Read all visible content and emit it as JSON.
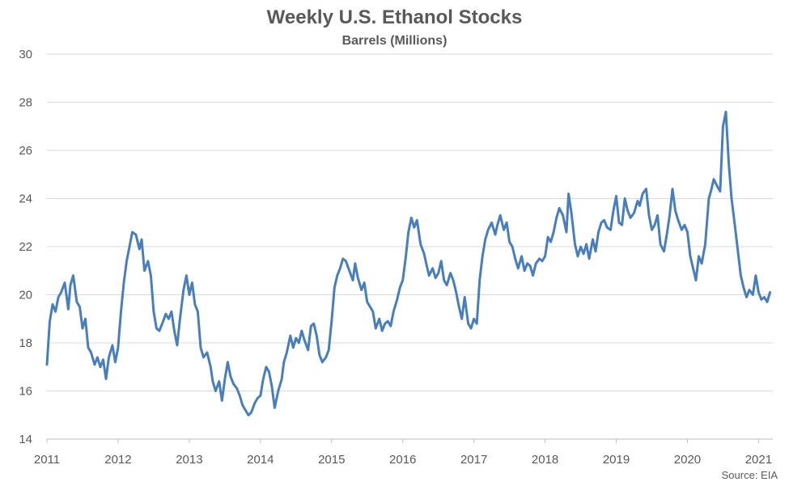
{
  "chart_data": {
    "type": "line",
    "title": "Weekly U.S. Ethanol Stocks",
    "subtitle": "Barrels (Millions)",
    "source": "Source: EIA",
    "xlabel": "",
    "ylabel": "",
    "xlim": [
      2011,
      2021.2
    ],
    "ylim": [
      14,
      30
    ],
    "x_ticks": [
      "2011",
      "2012",
      "2013",
      "2014",
      "2015",
      "2016",
      "2017",
      "2018",
      "2019",
      "2020",
      "2021"
    ],
    "y_ticks": [
      "14",
      "16",
      "18",
      "20",
      "22",
      "24",
      "26",
      "28",
      "30"
    ],
    "grid": true,
    "legend": "none",
    "series": [
      {
        "color": "#4a7ebb",
        "x": [
          2011.0,
          2011.04,
          2011.08,
          2011.12,
          2011.16,
          2011.2,
          2011.25,
          2011.3,
          2011.33,
          2011.37,
          2011.42,
          2011.46,
          2011.5,
          2011.54,
          2011.58,
          2011.62,
          2011.67,
          2011.71,
          2011.75,
          2011.79,
          2011.83,
          2011.87,
          2011.92,
          2011.96,
          2012.0,
          2012.04,
          2012.08,
          2012.12,
          2012.16,
          2012.2,
          2012.25,
          2012.3,
          2012.33,
          2012.37,
          2012.42,
          2012.46,
          2012.5,
          2012.54,
          2012.58,
          2012.62,
          2012.67,
          2012.71,
          2012.75,
          2012.79,
          2012.83,
          2012.87,
          2012.92,
          2012.96,
          2013.0,
          2013.04,
          2013.08,
          2013.12,
          2013.16,
          2013.2,
          2013.25,
          2013.3,
          2013.33,
          2013.37,
          2013.42,
          2013.46,
          2013.5,
          2013.54,
          2013.58,
          2013.62,
          2013.67,
          2013.71,
          2013.75,
          2013.79,
          2013.83,
          2013.87,
          2013.92,
          2013.96,
          2014.0,
          2014.04,
          2014.08,
          2014.12,
          2014.16,
          2014.2,
          2014.25,
          2014.3,
          2014.33,
          2014.37,
          2014.42,
          2014.46,
          2014.5,
          2014.54,
          2014.58,
          2014.62,
          2014.67,
          2014.71,
          2014.75,
          2014.79,
          2014.83,
          2014.87,
          2014.92,
          2014.96,
          2015.0,
          2015.04,
          2015.08,
          2015.12,
          2015.16,
          2015.2,
          2015.25,
          2015.3,
          2015.33,
          2015.37,
          2015.42,
          2015.46,
          2015.5,
          2015.54,
          2015.58,
          2015.62,
          2015.67,
          2015.71,
          2015.75,
          2015.79,
          2015.83,
          2015.87,
          2015.92,
          2015.96,
          2016.0,
          2016.04,
          2016.08,
          2016.12,
          2016.16,
          2016.2,
          2016.25,
          2016.3,
          2016.33,
          2016.37,
          2016.42,
          2016.46,
          2016.5,
          2016.54,
          2016.58,
          2016.62,
          2016.67,
          2016.71,
          2016.75,
          2016.79,
          2016.83,
          2016.87,
          2016.92,
          2016.96,
          2017.0,
          2017.04,
          2017.08,
          2017.12,
          2017.16,
          2017.2,
          2017.25,
          2017.3,
          2017.33,
          2017.37,
          2017.42,
          2017.46,
          2017.5,
          2017.54,
          2017.58,
          2017.62,
          2017.67,
          2017.71,
          2017.75,
          2017.79,
          2017.83,
          2017.87,
          2017.92,
          2017.96,
          2018.0,
          2018.04,
          2018.08,
          2018.12,
          2018.16,
          2018.2,
          2018.25,
          2018.3,
          2018.33,
          2018.37,
          2018.42,
          2018.46,
          2018.5,
          2018.54,
          2018.58,
          2018.62,
          2018.67,
          2018.71,
          2018.75,
          2018.79,
          2018.83,
          2018.87,
          2018.92,
          2018.96,
          2019.0,
          2019.04,
          2019.08,
          2019.12,
          2019.16,
          2019.2,
          2019.25,
          2019.3,
          2019.33,
          2019.37,
          2019.42,
          2019.46,
          2019.5,
          2019.54,
          2019.58,
          2019.62,
          2019.67,
          2019.71,
          2019.75,
          2019.79,
          2019.83,
          2019.87,
          2019.92,
          2019.96,
          2020.0,
          2020.04,
          2020.08,
          2020.12,
          2020.16,
          2020.2,
          2020.25,
          2020.3,
          2020.33,
          2020.37,
          2020.42,
          2020.46,
          2020.5,
          2020.54,
          2020.58,
          2020.62,
          2020.67,
          2020.71,
          2020.75,
          2020.79,
          2020.83,
          2020.87,
          2020.92,
          2020.96,
          2021.0,
          2021.04,
          2021.08,
          2021.12,
          2021.16
        ],
        "values": [
          17.1,
          18.9,
          19.6,
          19.3,
          19.9,
          20.1,
          20.5,
          19.4,
          20.4,
          20.8,
          19.7,
          19.5,
          18.6,
          19.0,
          17.8,
          17.6,
          17.1,
          17.4,
          17.0,
          17.3,
          16.5,
          17.4,
          17.9,
          17.2,
          17.8,
          19.3,
          20.5,
          21.4,
          22.0,
          22.6,
          22.5,
          21.9,
          22.3,
          21.0,
          21.4,
          20.8,
          19.3,
          18.6,
          18.5,
          18.8,
          19.2,
          19.0,
          19.3,
          18.5,
          17.9,
          19.0,
          20.2,
          20.8,
          20.0,
          20.5,
          19.6,
          19.3,
          17.8,
          17.4,
          17.6,
          17.0,
          16.4,
          16.0,
          16.4,
          15.6,
          16.5,
          17.2,
          16.6,
          16.3,
          16.1,
          15.8,
          15.4,
          15.2,
          15.0,
          15.1,
          15.5,
          15.7,
          15.8,
          16.5,
          17.0,
          16.8,
          16.2,
          15.3,
          16.0,
          16.5,
          17.2,
          17.6,
          18.3,
          17.8,
          18.2,
          18.0,
          18.5,
          18.1,
          17.7,
          18.7,
          18.8,
          18.3,
          17.5,
          17.2,
          17.4,
          17.7,
          18.9,
          20.3,
          20.8,
          21.1,
          21.5,
          21.4,
          21.0,
          20.6,
          21.3,
          20.7,
          20.2,
          20.5,
          19.7,
          19.5,
          19.3,
          18.6,
          19.0,
          18.5,
          18.8,
          18.9,
          18.7,
          19.3,
          19.8,
          20.3,
          20.6,
          21.5,
          22.6,
          23.2,
          22.8,
          23.1,
          22.1,
          21.7,
          21.3,
          20.8,
          21.1,
          20.7,
          20.9,
          21.4,
          20.6,
          20.4,
          20.9,
          20.6,
          20.1,
          19.5,
          19.0,
          19.9,
          18.8,
          18.6,
          19.0,
          18.8,
          20.6,
          21.6,
          22.3,
          22.7,
          23.0,
          22.5,
          22.9,
          23.3,
          22.7,
          23.0,
          22.2,
          22.0,
          21.5,
          21.1,
          21.6,
          21.0,
          21.3,
          21.2,
          20.8,
          21.3,
          21.5,
          21.4,
          21.6,
          22.4,
          22.2,
          22.6,
          23.2,
          23.6,
          23.3,
          22.6,
          24.2,
          23.4,
          22.1,
          21.6,
          22.0,
          21.7,
          22.1,
          21.5,
          22.3,
          21.8,
          22.6,
          23.0,
          23.1,
          22.8,
          22.7,
          23.5,
          24.1,
          23.0,
          22.9,
          24.0,
          23.5,
          23.2,
          23.4,
          23.9,
          23.7,
          24.2,
          24.4,
          23.3,
          22.7,
          22.9,
          23.3,
          22.1,
          21.8,
          22.5,
          23.3,
          24.4,
          23.5,
          23.1,
          22.7,
          22.9,
          22.6,
          21.6,
          21.1,
          20.6,
          21.6,
          21.3,
          22.1,
          24.0,
          24.3,
          24.8,
          24.5,
          24.3,
          27.0,
          27.6,
          25.5,
          24.0,
          22.8,
          21.8,
          20.8,
          20.3,
          19.9,
          20.2,
          20.0,
          20.8,
          20.1,
          19.8,
          19.9,
          19.7,
          20.1
        ]
      }
    ]
  }
}
